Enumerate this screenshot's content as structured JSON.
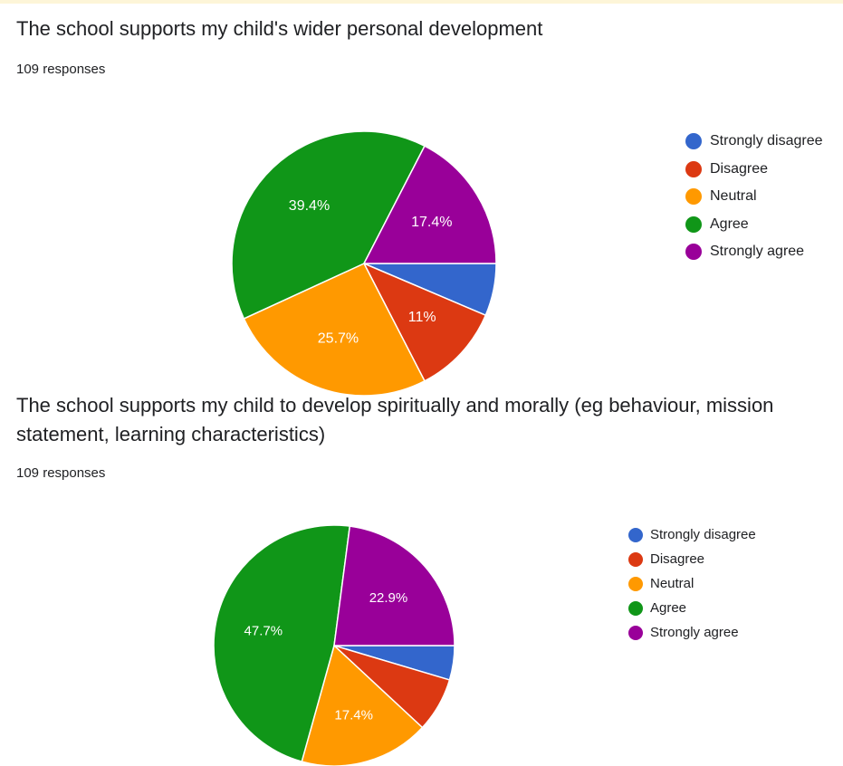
{
  "chart_data": [
    {
      "type": "pie",
      "title": "The school supports my child's wider personal development",
      "subtitle": "109 responses",
      "categories": [
        "Strongly disagree",
        "Disagree",
        "Neutral",
        "Agree",
        "Strongly agree"
      ],
      "values": [
        6.4,
        11,
        25.7,
        39.4,
        17.4
      ],
      "labels": [
        "",
        "11%",
        "25.7%",
        "39.4%",
        "17.4%"
      ],
      "colors": [
        "#3366cc",
        "#dc3912",
        "#ff9900",
        "#109618",
        "#990099"
      ],
      "legend_position": "right"
    },
    {
      "type": "pie",
      "title": "The school supports my child to develop spiritually and morally (eg behaviour, mission statement, learning characteristics)",
      "subtitle": "109 responses",
      "categories": [
        "Strongly disagree",
        "Disagree",
        "Neutral",
        "Agree",
        "Strongly agree"
      ],
      "values": [
        4.6,
        7.3,
        17.4,
        47.7,
        22.9
      ],
      "labels": [
        "",
        "",
        "17.4%",
        "47.7%",
        "22.9%"
      ],
      "colors": [
        "#3366cc",
        "#dc3912",
        "#ff9900",
        "#109618",
        "#990099"
      ],
      "legend_position": "right"
    }
  ],
  "questions": [
    {
      "title_lines": [
        "The school supports my child's wider personal development"
      ],
      "responses": "109 responses"
    },
    {
      "title_lines": [
        "The school supports my child to develop spiritually and morally (eg behaviour, mission",
        "statement, learning characteristics)"
      ],
      "responses": "109 responses"
    }
  ]
}
